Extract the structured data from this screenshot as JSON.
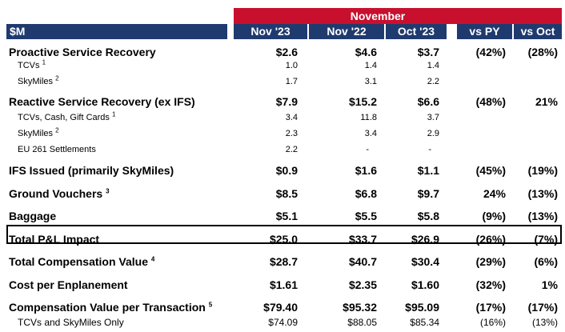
{
  "header": {
    "group_title": "November",
    "label": "$M",
    "columns": [
      "Nov '23",
      "Nov '22",
      "Oct '23",
      "vs PY",
      "vs Oct"
    ]
  },
  "rows": [
    {
      "label": "Proactive Service Recovery",
      "sup": "",
      "style": "bold",
      "values": [
        "$2.6",
        "$4.6",
        "$3.7",
        "(42%)",
        "(28%)"
      ]
    },
    {
      "label": "TCVs",
      "sup": "1",
      "style": "sub",
      "values": [
        "1.0",
        "1.4",
        "1.4",
        "",
        ""
      ]
    },
    {
      "label": "SkyMiles",
      "sup": "2",
      "style": "sub",
      "values": [
        "1.7",
        "3.1",
        "2.2",
        "",
        ""
      ]
    },
    {
      "label": "Reactive Service Recovery (ex IFS)",
      "sup": "",
      "style": "bold",
      "values": [
        "$7.9",
        "$15.2",
        "$6.6",
        "(48%)",
        "21%"
      ]
    },
    {
      "label": "TCVs, Cash, Gift Cards",
      "sup": "1",
      "style": "sub",
      "values": [
        "3.4",
        "11.8",
        "3.7",
        "",
        ""
      ]
    },
    {
      "label": "SkyMiles",
      "sup": "2",
      "style": "sub",
      "values": [
        "2.3",
        "3.4",
        "2.9",
        "",
        ""
      ]
    },
    {
      "label": "EU 261 Settlements",
      "sup": "",
      "style": "sub",
      "values": [
        "2.2",
        "-",
        "-",
        "",
        ""
      ]
    },
    {
      "label": "IFS Issued (primarily SkyMiles)",
      "sup": "",
      "style": "bold",
      "values": [
        "$0.9",
        "$1.6",
        "$1.1",
        "(45%)",
        "(19%)"
      ]
    },
    {
      "label": "Ground Vouchers",
      "sup": "3",
      "style": "bold",
      "values": [
        "$8.5",
        "$6.8",
        "$9.7",
        "24%",
        "(13%)"
      ]
    },
    {
      "label": "Baggage",
      "sup": "",
      "style": "bold",
      "values": [
        "$5.1",
        "$5.5",
        "$5.8",
        "(9%)",
        "(13%)"
      ]
    },
    {
      "label": "Total P&L Impact",
      "sup": "",
      "style": "bold",
      "values": [
        "$25.0",
        "$33.7",
        "$26.9",
        "(26%)",
        "(7%)"
      ]
    },
    {
      "label": "Total Compensation Value",
      "sup": "4",
      "style": "bold",
      "values": [
        "$28.7",
        "$40.7",
        "$30.4",
        "(29%)",
        "(6%)"
      ]
    },
    {
      "label": "Cost per Enplanement",
      "sup": "",
      "style": "bold",
      "values": [
        "$1.61",
        "$2.35",
        "$1.60",
        "(32%)",
        "1%"
      ]
    },
    {
      "label": "Compensation Value per Transaction",
      "sup": "5",
      "style": "bold",
      "values": [
        "$79.40",
        "$95.32",
        "$95.09",
        "(17%)",
        "(17%)"
      ]
    },
    {
      "label": "TCVs and SkyMiles Only",
      "sup": "",
      "style": "plain",
      "values": [
        "$74.09",
        "$88.05",
        "$85.34",
        "(16%)",
        "(13%)"
      ]
    }
  ]
}
